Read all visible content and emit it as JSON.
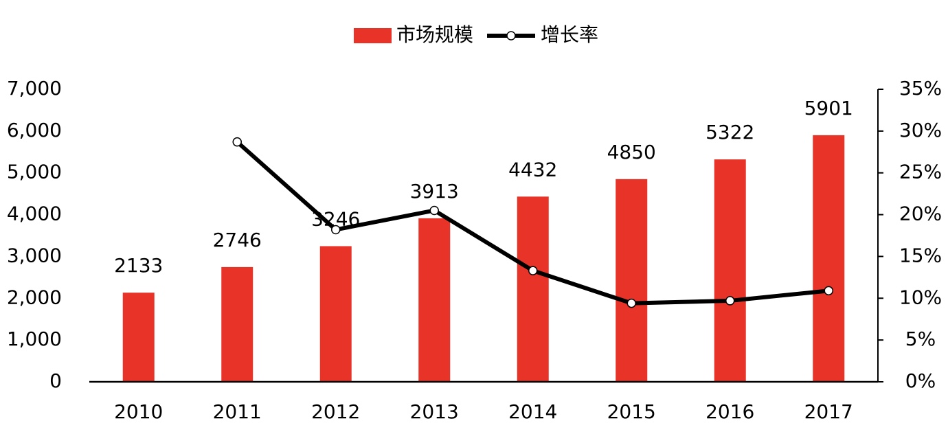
{
  "chart_data": {
    "type": "bar",
    "categories": [
      "2010",
      "2011",
      "2012",
      "2013",
      "2014",
      "2015",
      "2016",
      "2017"
    ],
    "series": [
      {
        "name": "市场规模",
        "type": "bar",
        "color": "#e83428",
        "values": [
          2133,
          2746,
          3246,
          3913,
          4432,
          4850,
          5322,
          5901
        ]
      },
      {
        "name": "增长率",
        "type": "line",
        "axis": "y2",
        "color": "#000000",
        "values": [
          null,
          28.7,
          18.2,
          20.5,
          13.3,
          9.4,
          9.7,
          10.9
        ]
      }
    ],
    "ylim": [
      0,
      7000
    ],
    "yticks": [
      0,
      {
        "value": 1000,
        "label": "1,000"
      },
      {
        "value": 2000,
        "label": "2,000"
      },
      {
        "value": 3000,
        "label": "3,000"
      },
      {
        "value": 4000,
        "label": "4,000"
      },
      {
        "value": 5000,
        "label": "5,000"
      },
      {
        "value": 6000,
        "label": "6,000"
      },
      {
        "value": 7000,
        "label": "7,000"
      }
    ],
    "y2lim": [
      0,
      35
    ],
    "y2ticks": [
      {
        "value": 0,
        "label": "0%"
      },
      {
        "value": 5,
        "label": "5%"
      },
      {
        "value": 10,
        "label": "10%"
      },
      {
        "value": 15,
        "label": "15%"
      },
      {
        "value": 20,
        "label": "20%"
      },
      {
        "value": 25,
        "label": "25%"
      },
      {
        "value": 30,
        "label": "30%"
      },
      {
        "value": 35,
        "label": "35%"
      }
    ],
    "legend": "top",
    "grid": false
  }
}
